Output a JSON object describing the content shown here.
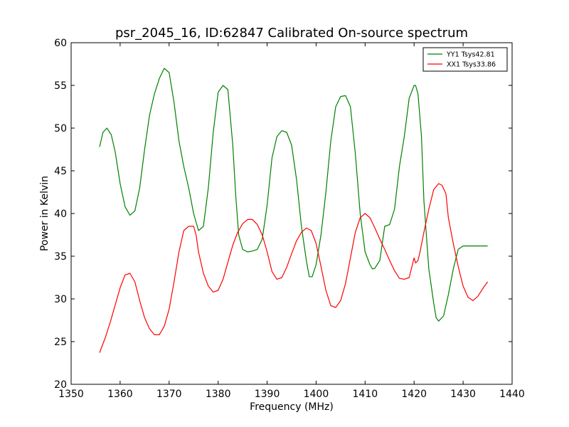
{
  "chart_data": {
    "type": "line",
    "title": "psr_2045_16, ID:62847 Calibrated On-source spectrum",
    "xlabel": "Frequency (MHz)",
    "ylabel": "Power in Kelvin",
    "xlim": [
      1350,
      1440
    ],
    "ylim": [
      20,
      60
    ],
    "xticks": [
      1350,
      1360,
      1370,
      1380,
      1390,
      1400,
      1410,
      1420,
      1430,
      1440
    ],
    "yticks": [
      20,
      25,
      30,
      35,
      40,
      45,
      50,
      55,
      60
    ],
    "legend_position": "top-right",
    "series": [
      {
        "name": "YY1 Tsys42.81",
        "color": "#008000",
        "x": [
          1355.8,
          1356.5,
          1357.3,
          1358.2,
          1359.0,
          1360.0,
          1361.0,
          1362.0,
          1363.0,
          1364.0,
          1365.0,
          1366.0,
          1367.0,
          1368.0,
          1369.0,
          1370.0,
          1371.0,
          1372.0,
          1373.0,
          1374.0,
          1375.0,
          1376.0,
          1377.0,
          1378.0,
          1379.0,
          1380.0,
          1381.0,
          1382.0,
          1383.0,
          1383.6,
          1384.2,
          1385.0,
          1386.0,
          1387.0,
          1388.0,
          1389.0,
          1390.0,
          1391.0,
          1392.0,
          1393.0,
          1394.0,
          1395.0,
          1396.0,
          1397.0,
          1398.0,
          1398.6,
          1399.2,
          1400.0,
          1401.0,
          1402.0,
          1403.0,
          1404.0,
          1405.0,
          1406.0,
          1407.0,
          1408.0,
          1409.0,
          1410.0,
          1411.0,
          1411.5,
          1412.0,
          1413.0,
          1414.0,
          1415.0,
          1416.0,
          1417.0,
          1418.0,
          1419.0,
          1420.0,
          1420.3,
          1420.8,
          1421.5,
          1422.0,
          1423.0,
          1424.0,
          1424.5,
          1425.0,
          1426.0,
          1427.0,
          1428.0,
          1429.0,
          1430.0,
          1431.0,
          1432.0,
          1433.0,
          1434.0,
          1435.0
        ],
        "y": [
          47.8,
          49.5,
          50.0,
          49.2,
          47.2,
          43.5,
          40.8,
          39.8,
          40.3,
          43.0,
          47.5,
          51.5,
          54.0,
          55.8,
          57.0,
          56.5,
          53.0,
          48.5,
          45.5,
          43.0,
          40.0,
          38.0,
          38.5,
          43.0,
          49.5,
          54.2,
          55.0,
          54.5,
          48.0,
          42.0,
          37.5,
          35.8,
          35.5,
          35.6,
          35.8,
          37.0,
          41.0,
          46.5,
          49.0,
          49.7,
          49.5,
          48.0,
          44.0,
          38.5,
          34.5,
          32.6,
          32.6,
          34.0,
          37.5,
          42.5,
          48.5,
          52.5,
          53.7,
          53.8,
          52.5,
          47.0,
          40.0,
          35.5,
          34.0,
          33.5,
          33.6,
          34.5,
          38.5,
          38.7,
          40.5,
          45.5,
          49.0,
          53.5,
          55.0,
          55.0,
          54.0,
          49.0,
          41.5,
          33.5,
          29.5,
          27.8,
          27.4,
          28.0,
          30.5,
          33.5,
          35.8,
          36.2,
          36.2,
          36.2,
          36.2,
          36.2,
          36.2
        ]
      },
      {
        "name": "XX1 Tsys33.86",
        "color": "#ff0000",
        "x": [
          1355.8,
          1357.0,
          1358.0,
          1359.0,
          1360.0,
          1361.0,
          1362.0,
          1363.0,
          1364.0,
          1365.0,
          1366.0,
          1367.0,
          1368.0,
          1369.0,
          1370.0,
          1371.0,
          1372.0,
          1373.0,
          1374.0,
          1375.0,
          1375.5,
          1376.0,
          1377.0,
          1378.0,
          1379.0,
          1380.0,
          1381.0,
          1382.0,
          1383.0,
          1384.0,
          1385.0,
          1386.0,
          1387.0,
          1388.0,
          1389.0,
          1390.0,
          1391.0,
          1392.0,
          1393.0,
          1394.0,
          1395.0,
          1396.0,
          1397.0,
          1398.0,
          1399.0,
          1400.0,
          1401.0,
          1402.0,
          1403.0,
          1404.0,
          1405.0,
          1406.0,
          1407.0,
          1408.0,
          1409.0,
          1410.0,
          1411.0,
          1412.0,
          1413.0,
          1414.0,
          1415.0,
          1416.0,
          1417.0,
          1418.0,
          1419.0,
          1420.0,
          1420.3,
          1420.8,
          1421.2,
          1422.0,
          1423.0,
          1424.0,
          1425.0,
          1425.7,
          1426.5,
          1427.0,
          1428.0,
          1429.0,
          1430.0,
          1431.0,
          1432.0,
          1433.0,
          1434.0,
          1435.0
        ],
        "y": [
          23.7,
          25.5,
          27.3,
          29.3,
          31.3,
          32.8,
          33.0,
          32.0,
          29.8,
          27.8,
          26.5,
          25.8,
          25.8,
          26.8,
          28.8,
          32.0,
          35.5,
          38.0,
          38.5,
          38.5,
          37.5,
          35.5,
          33.0,
          31.5,
          30.8,
          31.0,
          32.3,
          34.3,
          36.3,
          37.8,
          38.8,
          39.3,
          39.3,
          38.7,
          37.5,
          35.5,
          33.2,
          32.3,
          32.5,
          33.7,
          35.3,
          36.8,
          37.8,
          38.3,
          38.0,
          36.5,
          33.8,
          31.0,
          29.2,
          29.0,
          29.8,
          31.8,
          34.8,
          37.8,
          39.5,
          40.0,
          39.5,
          38.3,
          37.0,
          35.8,
          34.5,
          33.3,
          32.4,
          32.3,
          32.5,
          34.8,
          34.2,
          34.5,
          35.5,
          37.8,
          40.5,
          42.8,
          43.5,
          43.3,
          42.3,
          39.5,
          36.5,
          33.8,
          31.5,
          30.2,
          29.8,
          30.3,
          31.2,
          32.0
        ]
      }
    ]
  }
}
